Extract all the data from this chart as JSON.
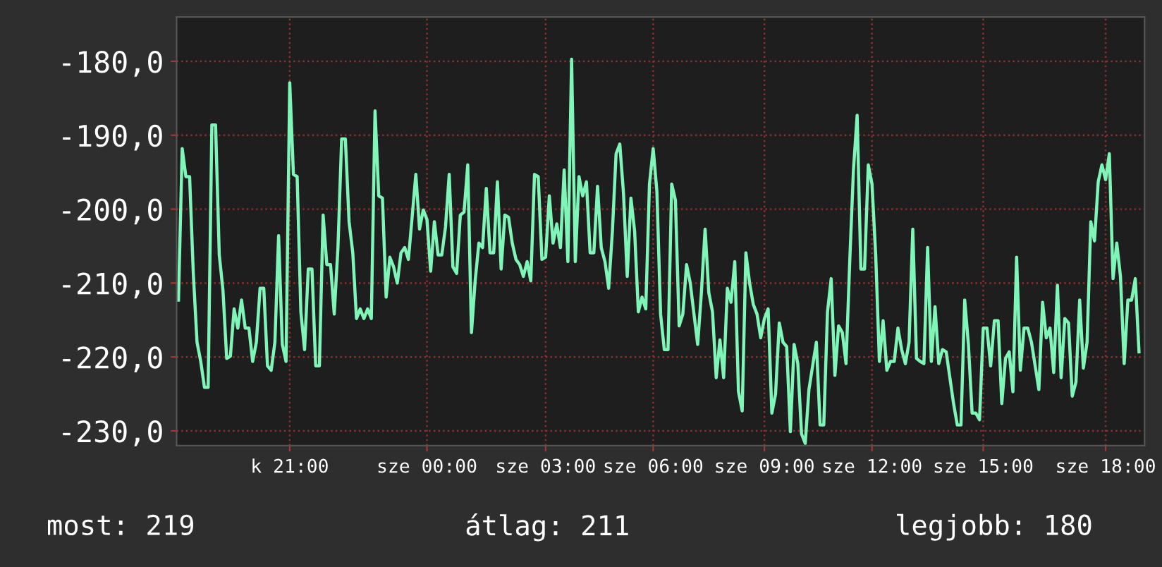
{
  "chart_data": {
    "type": "line",
    "color": "#7ff5b8",
    "categories": [
      null,
      null,
      null,
      null,
      null,
      null,
      null,
      null,
      null,
      null,
      null,
      null,
      null,
      null,
      null,
      null,
      null,
      null,
      null,
      null,
      null,
      null,
      null,
      null,
      null,
      null,
      null,
      null,
      null,
      null,
      "k 21:00",
      null,
      null,
      null,
      null,
      null,
      null,
      null,
      null,
      null,
      null,
      null,
      null,
      null,
      null,
      null,
      null,
      null,
      null,
      null,
      null,
      null,
      null,
      null,
      null,
      null,
      null,
      null,
      null,
      null,
      null,
      null,
      null,
      null,
      null,
      null,
      null,
      "sze 00:00",
      null,
      null,
      null,
      null,
      null,
      null,
      null,
      null,
      null,
      null,
      null,
      null,
      null,
      null,
      null,
      null,
      null,
      null,
      null,
      null,
      null,
      null,
      null,
      null,
      null,
      null,
      null,
      null,
      null,
      null,
      null,
      "sze 03:00",
      null,
      null,
      null,
      null,
      null,
      null,
      null,
      null,
      null,
      null,
      null,
      null,
      null,
      null,
      null,
      null,
      null,
      null,
      null,
      null,
      null,
      null,
      null,
      null,
      null,
      null,
      null,
      null,
      "sze 06:00",
      null,
      null,
      null,
      null,
      null,
      null,
      null,
      null,
      null,
      null,
      null,
      null,
      null,
      null,
      null,
      null,
      null,
      null,
      null,
      null,
      null,
      null,
      null,
      null,
      null,
      null,
      null,
      null,
      null,
      "sze 09:00",
      null,
      null,
      null,
      null,
      null,
      null,
      null,
      null,
      null,
      null,
      null,
      null,
      null,
      null,
      null,
      null,
      null,
      null,
      null,
      null,
      null,
      null,
      null,
      null,
      null,
      null,
      null,
      null,
      "sze 12:00",
      null,
      null,
      null,
      null,
      null,
      null,
      null,
      null,
      null,
      null,
      null,
      null,
      null,
      null,
      null,
      null,
      null,
      null,
      null,
      null,
      null,
      null,
      null,
      null,
      null,
      null,
      null,
      null,
      null,
      "sze 15:00",
      null,
      null,
      null,
      null,
      null,
      null,
      null,
      null,
      null,
      null,
      null,
      null,
      null,
      null,
      null,
      null,
      null,
      null,
      null,
      null,
      null,
      null,
      null,
      null,
      null,
      null,
      null,
      null,
      null,
      null,
      null,
      null,
      "sze 18:00",
      null,
      null,
      null,
      null,
      null,
      null,
      null,
      null,
      null
    ],
    "values": [
      -212.3,
      -191.8,
      -195.6,
      -195.6,
      -208.7,
      -218.0,
      -220.6,
      -224.1,
      -224.1,
      -188.6,
      -188.6,
      -206.2,
      -211.0,
      -220.2,
      -219.9,
      -213.5,
      -216.1,
      -212.3,
      -216.1,
      -216.1,
      -220.6,
      -218.0,
      -210.7,
      -210.7,
      -221.2,
      -221.8,
      -218.0,
      -203.6,
      -218.3,
      -220.6,
      -182.9,
      -195.3,
      -195.6,
      -213.9,
      -219.0,
      -208.1,
      -208.1,
      -221.2,
      -221.2,
      -200.8,
      -207.5,
      -207.5,
      -214.2,
      -205.2,
      -190.5,
      -190.5,
      -201.7,
      -205.9,
      -214.8,
      -213.5,
      -214.8,
      -213.5,
      -214.8,
      -186.7,
      -198.2,
      -198.5,
      -211.9,
      -206.5,
      -207.8,
      -210.0,
      -205.9,
      -205.2,
      -206.8,
      -201.1,
      -195.3,
      -202.7,
      -200.1,
      -201.4,
      -208.4,
      -201.7,
      -206.2,
      -206.2,
      -202.4,
      -195.3,
      -207.8,
      -208.7,
      -200.8,
      -200.4,
      -194.0,
      -216.7,
      -209.7,
      -204.6,
      -205.2,
      -197.2,
      -205.9,
      -205.9,
      -196.3,
      -208.1,
      -200.8,
      -201.1,
      -204.6,
      -206.8,
      -207.5,
      -209.1,
      -207.1,
      -209.7,
      -195.3,
      -195.6,
      -206.8,
      -206.5,
      -198.2,
      -204.6,
      -202.0,
      -205.2,
      -194.7,
      -207.1,
      -179.7,
      -207.1,
      -195.6,
      -198.2,
      -196.3,
      -205.9,
      -205.9,
      -196.9,
      -205.2,
      -207.1,
      -210.7,
      -203.0,
      -192.5,
      -191.2,
      -197.9,
      -209.1,
      -198.5,
      -203.0,
      -213.9,
      -211.9,
      -213.5,
      -196.6,
      -191.8,
      -197.6,
      -214.2,
      -219.0,
      -219.0,
      -196.6,
      -198.8,
      -215.8,
      -214.2,
      -207.5,
      -210.0,
      -214.2,
      -218.3,
      -211.3,
      -202.7,
      -211.3,
      -213.9,
      -222.8,
      -217.7,
      -222.8,
      -210.7,
      -212.6,
      -207.1,
      -224.7,
      -227.3,
      -205.9,
      -210.0,
      -212.9,
      -214.2,
      -217.4,
      -214.8,
      -213.5,
      -227.6,
      -225.0,
      -215.4,
      -218.0,
      -218.6,
      -230.1,
      -218.3,
      -220.9,
      -230.4,
      -231.7,
      -224.4,
      -221.2,
      -218.0,
      -229.2,
      -229.2,
      -213.9,
      -209.4,
      -222.5,
      -215.8,
      -216.7,
      -220.9,
      -207.1,
      -194.7,
      -187.3,
      -208.1,
      -208.1,
      -194.0,
      -196.6,
      -206.2,
      -220.6,
      -215.1,
      -221.8,
      -220.6,
      -220.6,
      -216.1,
      -219.0,
      -220.9,
      -218.0,
      -202.7,
      -220.2,
      -220.6,
      -220.9,
      -205.2,
      -220.6,
      -213.2,
      -220.9,
      -219.0,
      -219.3,
      -222.8,
      -226.3,
      -229.2,
      -229.2,
      -212.3,
      -218.3,
      -227.6,
      -227.6,
      -228.5,
      -216.1,
      -216.1,
      -221.2,
      -215.1,
      -215.1,
      -226.3,
      -220.2,
      -219.3,
      -224.7,
      -206.5,
      -221.8,
      -216.1,
      -216.1,
      -218.0,
      -221.2,
      -224.4,
      -212.6,
      -217.4,
      -216.1,
      -222.1,
      -210.3,
      -222.8,
      -214.8,
      -215.4,
      -225.3,
      -223.4,
      -212.3,
      -221.5,
      -218.0,
      -201.7,
      -204.3,
      -196.3,
      -194.0,
      -196.0,
      -192.5,
      -209.4,
      -204.6,
      -209.1,
      -220.9,
      -212.3,
      -212.3,
      -209.4,
      -219.3
    ],
    "ylim": [
      -232,
      -174
    ],
    "yticks": [
      {
        "value": -180,
        "label": "-180,0"
      },
      {
        "value": -190,
        "label": "-190,0"
      },
      {
        "value": -200,
        "label": "-200,0"
      },
      {
        "value": -210,
        "label": "-210,0"
      },
      {
        "value": -220,
        "label": "-220,0"
      },
      {
        "value": -230,
        "label": "-230,0"
      }
    ],
    "grid": true,
    "annotations": [
      "most: 219",
      "átlag: 211",
      "legjobb: 180"
    ]
  }
}
